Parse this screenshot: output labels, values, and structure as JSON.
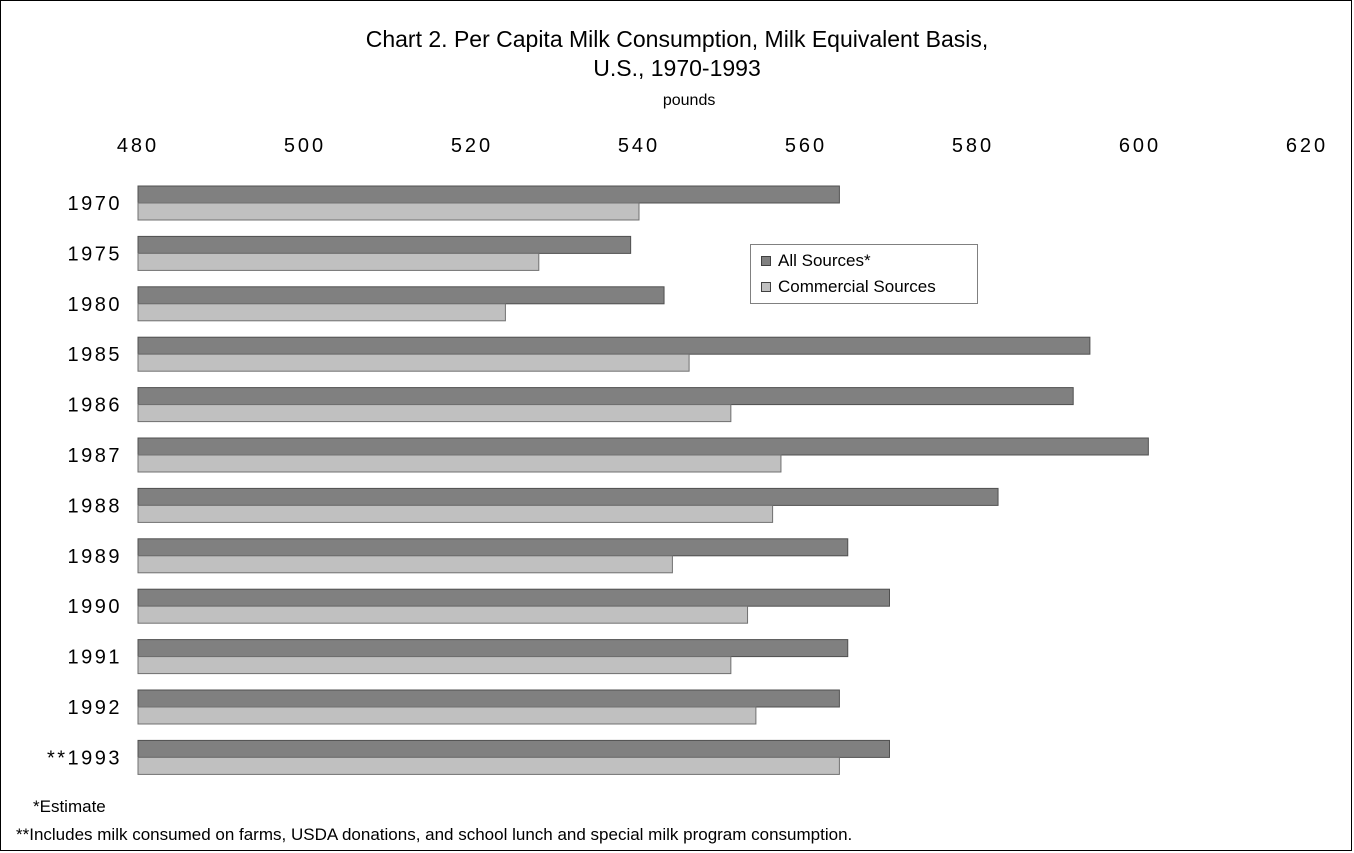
{
  "chart_data": {
    "type": "bar",
    "orientation": "horizontal",
    "title_line1": "Chart 2.  Per Capita Milk Consumption, Milk Equivalent Basis,",
    "title_line2": "U.S., 1970-1993",
    "xlabel": "pounds",
    "xlim": [
      480,
      620
    ],
    "xticks": [
      "480",
      "500",
      "520",
      "540",
      "560",
      "580",
      "600",
      "620"
    ],
    "categories": [
      "1970",
      "1975",
      "1980",
      "1985",
      "1986",
      "1987",
      "1988",
      "1989",
      "1990",
      "1991",
      "1992",
      "**1993"
    ],
    "series": [
      {
        "name": "All  Sources*",
        "color": "#808080",
        "values": [
          564,
          539,
          543,
          594,
          592,
          601,
          583,
          565,
          570,
          565,
          564,
          570
        ]
      },
      {
        "name": "Commercial Sources",
        "color": "#c0c0c0",
        "values": [
          540,
          528,
          524,
          546,
          551,
          557,
          556,
          544,
          553,
          551,
          554,
          564
        ]
      }
    ],
    "legend_position": "upper-middle",
    "grid": false
  },
  "notes": {
    "estimate": "*Estimate",
    "includes": "**Includes milk consumed on farms, USDA donations, and school lunch and special milk program consumption."
  }
}
